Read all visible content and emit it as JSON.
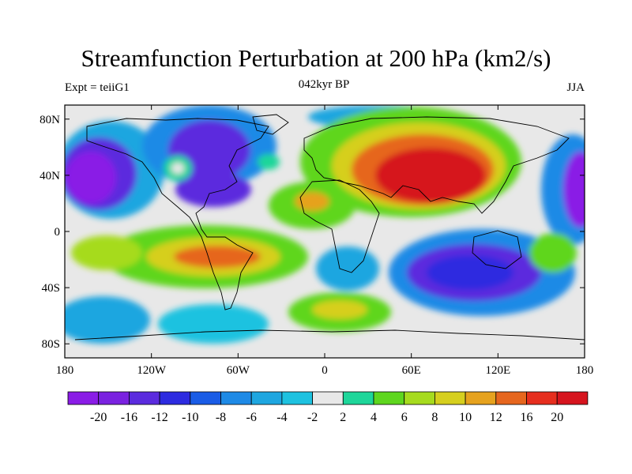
{
  "title": "Streamfunction Perturbation at 200 hPa (km2/s)",
  "left_label": "Expt = teiiG1",
  "center_label": "042kyr BP",
  "right_label": "JJA",
  "map": {
    "projection": "cylindrical equidistant",
    "lon_range": [
      -180,
      180
    ],
    "lat_range": [
      -90,
      90
    ],
    "x_ticks": [
      {
        "lon": -180,
        "label": "180"
      },
      {
        "lon": -120,
        "label": "120W"
      },
      {
        "lon": -60,
        "label": "60W"
      },
      {
        "lon": 0,
        "label": "0"
      },
      {
        "lon": 60,
        "label": "60E"
      },
      {
        "lon": 120,
        "label": "120E"
      },
      {
        "lon": 180,
        "label": "180"
      }
    ],
    "y_ticks": [
      {
        "lat": 80,
        "label": "80N"
      },
      {
        "lat": 40,
        "label": "40N"
      },
      {
        "lat": 0,
        "label": "0"
      },
      {
        "lat": -40,
        "label": "40S"
      },
      {
        "lat": -80,
        "label": "80S"
      }
    ]
  },
  "colorbar": {
    "labels": [
      "-20",
      "-16",
      "-12",
      "-10",
      "-8",
      "-6",
      "-4",
      "-2",
      "2",
      "4",
      "6",
      "8",
      "10",
      "12",
      "16",
      "20"
    ],
    "colors": [
      "#8A1CE6",
      "#7A22E0",
      "#5B2BDE",
      "#2D2BE0",
      "#1A5CE6",
      "#1E8AE6",
      "#1EA6E0",
      "#1EC2E0",
      "#E8E8E8",
      "#1ED69A",
      "#5ED61E",
      "#A6DB1E",
      "#D6CF1E",
      "#E6A21E",
      "#E6661E",
      "#E62E1E",
      "#D6141E"
    ]
  }
}
